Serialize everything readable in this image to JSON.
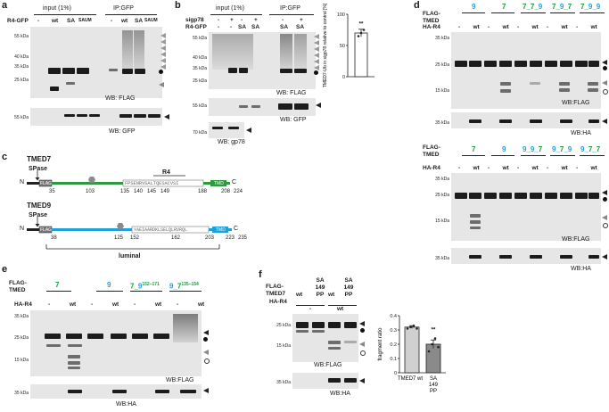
{
  "panels": {
    "a": {
      "letter": "a",
      "header_input": "input (1%)",
      "header_ip": "IP:GFP",
      "row_label": "R4-GFP",
      "lanes": [
        "-",
        "wt",
        "SA",
        "SAUM",
        "-",
        "wt",
        "SA",
        "SAUM"
      ],
      "mw_top": [
        "55 kDa",
        "40 kDa",
        "35 kDa",
        "25 kDa"
      ],
      "mw_bottom": [
        "55 kDa"
      ],
      "wb_top": "WB: FLAG",
      "wb_bottom": "WB: GFP"
    },
    "b": {
      "letter": "b",
      "header_input": "input (1%)",
      "header_ip": "IP:GFP",
      "row1_label": "sigp78",
      "row1": [
        "-",
        "+",
        "-",
        "+",
        "-",
        "+"
      ],
      "row2_label": "R4-GFP",
      "row2": [
        "-",
        "-",
        "SA",
        "SA",
        "SA",
        "SA"
      ],
      "mw_top": [
        "55 kDa",
        "40 kDa",
        "35 kDa",
        "25 kDa"
      ],
      "mw_mid": [
        "55 kDa"
      ],
      "mw_bot": [
        "70 kDa"
      ],
      "wb_top": "WB: FLAG",
      "wb_mid": "WB: GFP",
      "wb_bot": "WB: gp78"
    },
    "b_chart": {
      "ylabel": "TMED7-Ub in sigp78 relative to control [%]",
      "significance": "**"
    },
    "c": {
      "letter": "c",
      "tmed7": {
        "name": "TMED7",
        "spase": "SPase",
        "n": "N",
        "c": "C",
        "flag": "FLAG",
        "r4": "R4",
        "tmd": "TMD",
        "seq": "FPSENRVSALTQESACVSI",
        "numbers": [
          "35",
          "103",
          "135",
          "140",
          "145",
          "149",
          "188",
          "208",
          "224"
        ]
      },
      "tmed9": {
        "name": "TMED9",
        "spase": "SPase",
        "n": "N",
        "c": "C",
        "flag": "FLAG",
        "tmd": "TMD",
        "seq": "YAEIAARDKLSELQLRVRQL",
        "numbers": [
          "38",
          "125",
          "152",
          "162",
          "203",
          "223",
          "235"
        ]
      },
      "luminal": "luminal"
    },
    "d": {
      "letter": "d",
      "top": {
        "flag_label": "FLAG-TMED",
        "constructs": [
          "9",
          "7",
          "7_7_9",
          "7_9_7",
          "7_9_9"
        ],
        "ha_label": "HA-R4",
        "ha": [
          "-",
          "wt",
          "-",
          "wt",
          "-",
          "wt",
          "-",
          "wt",
          "-",
          "wt"
        ],
        "mw_top": [
          "35 kDa",
          "25 kDa",
          "15 kDa"
        ],
        "mw_bot": [
          "35 kDa"
        ],
        "wb_top": "WB:FLAG",
        "wb_bot": "WB:HA"
      },
      "bottom": {
        "flag_label": "FLAG-TMED",
        "constructs": [
          "7",
          "9",
          "9_9_7",
          "9_7_9",
          "9_7_7"
        ],
        "ha_label": "HA-R4",
        "ha": [
          "-",
          "wt",
          "-",
          "wt",
          "-",
          "wt",
          "-",
          "wt",
          "-",
          "wt"
        ],
        "mw_top": [
          "35 kDa",
          "25 kDa",
          "15 kDa"
        ],
        "mw_bot": [
          "35 kDa"
        ],
        "wb_top": "WB:FLAG",
        "wb_bot": "WB:HA"
      }
    },
    "e": {
      "letter": "e",
      "flag_label": "FLAG-TMED",
      "constructs": [
        "7",
        "9",
        "7_9",
        "9_7"
      ],
      "superscripts": [
        "152–171",
        "135–154"
      ],
      "ha_label": "HA-R4",
      "ha": [
        "-",
        "wt",
        "-",
        "wt",
        "-",
        "wt",
        "-",
        "wt"
      ],
      "mw_top": [
        "35 kDa",
        "25 kDa",
        "15 kDa"
      ],
      "mw_bot": [
        "35 kDa"
      ],
      "wb_top": "WB:FLAG",
      "wb_bot": "WB:HA"
    },
    "f": {
      "letter": "f",
      "flag_label": "FLAG-TMED7",
      "constructs": [
        "wt",
        "SA 149 PP",
        "wt",
        "SA 149 PP"
      ],
      "ha_label": "HA-R4",
      "ha": [
        "-",
        "wt"
      ],
      "mw_top": [
        "25 kDa",
        "15 kDa"
      ],
      "mw_bot": [
        "35 kDa"
      ],
      "wb_top": "WB:FLAG",
      "wb_bot": "WB:HA"
    }
  },
  "chart_data": [
    {
      "type": "bar",
      "panel": "b",
      "categories": [
        ""
      ],
      "values": [
        70
      ],
      "points": [
        65,
        70,
        75
      ],
      "ylabel": "TMED7-Ub in sigp78 relative to control [%]",
      "ylim": [
        0,
        100
      ],
      "yticks": [
        0,
        50,
        100
      ],
      "significance": "**"
    },
    {
      "type": "bar",
      "panel": "f",
      "categories": [
        "TMED7 wt",
        "SA 149 PP"
      ],
      "values": [
        0.32,
        0.2
      ],
      "points": [
        [
          0.31,
          0.32,
          0.33,
          0.31
        ],
        [
          0.15,
          0.2,
          0.24,
          0.18
        ]
      ],
      "ylabel": "fragment ratio",
      "ylim": [
        0,
        0.4
      ],
      "yticks": [
        0,
        0.1,
        0.2,
        0.3,
        0.4
      ],
      "significance": "**"
    }
  ]
}
